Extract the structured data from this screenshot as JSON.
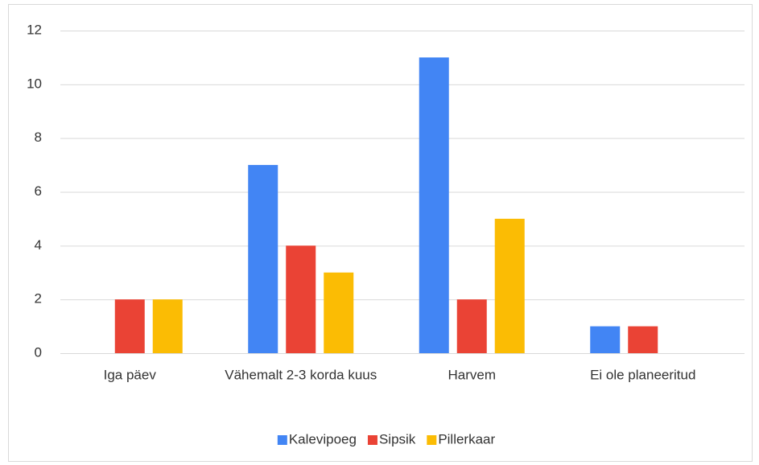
{
  "chart_data": {
    "type": "bar",
    "categories": [
      "Iga päev",
      "Vähemalt 2-3 korda kuus",
      "Harvem",
      "Ei ole planeeritud"
    ],
    "series": [
      {
        "name": "Kalevipoeg",
        "color": "#4285f4",
        "values": [
          0,
          7,
          11,
          1
        ]
      },
      {
        "name": "Sipsik",
        "color": "#ea4335",
        "values": [
          2,
          4,
          2,
          1
        ]
      },
      {
        "name": "Pillerkaar",
        "color": "#fbbc04",
        "values": [
          2,
          3,
          5,
          0
        ]
      }
    ],
    "ylim": [
      0,
      12
    ],
    "yticks": [
      0,
      2,
      4,
      6,
      8,
      10,
      12
    ],
    "grid": true,
    "legend": "bottom"
  }
}
